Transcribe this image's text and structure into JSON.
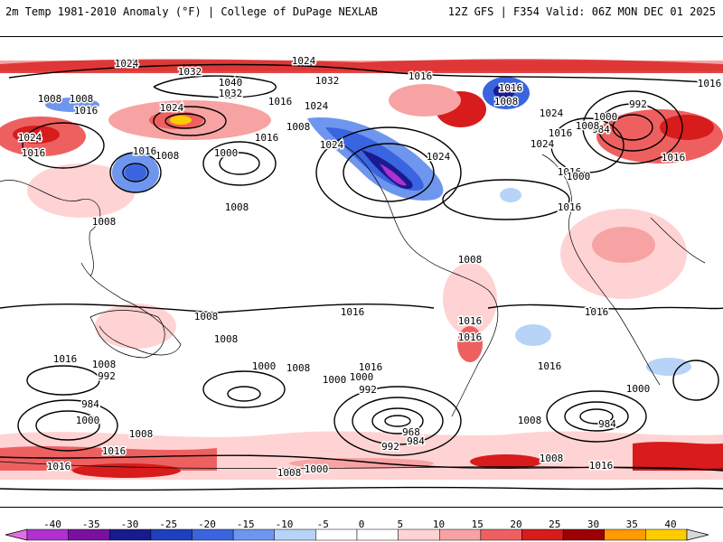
{
  "header": {
    "left": "2m Temp 1981-2010 Anomaly (°F) | College of DuPage NEXLAB",
    "right": "12Z GFS | F354 Valid: 06Z MON DEC 01 2025"
  },
  "colorbar": {
    "ticks": [
      "-40",
      "-35",
      "-30",
      "-25",
      "-20",
      "-15",
      "-10",
      "-5",
      "0",
      "5",
      "10",
      "15",
      "20",
      "25",
      "30",
      "35",
      "40"
    ],
    "colors": [
      "#e070e0",
      "#b030d0",
      "#7a10a0",
      "#1a1a90",
      "#1f3fc0",
      "#3a64e0",
      "#6f96ee",
      "#b7d3f7",
      "#ffffff",
      "#ffffff",
      "#ffd3d3",
      "#f7a3a3",
      "#ee6060",
      "#d81b1b",
      "#9c0000",
      "#ff9a00",
      "#ffcc00",
      "#d7d7d7"
    ]
  },
  "contour_labels": [
    {
      "text": "1024"
    },
    {
      "text": "1024"
    },
    {
      "text": "1032"
    },
    {
      "text": "1040"
    },
    {
      "text": "1032"
    },
    {
      "text": "1016"
    },
    {
      "text": "1008"
    },
    {
      "text": "1016"
    },
    {
      "text": "1024"
    },
    {
      "text": "1024"
    },
    {
      "text": "1008"
    },
    {
      "text": "1016"
    },
    {
      "text": "1000"
    },
    {
      "text": "1008"
    },
    {
      "text": "1016"
    },
    {
      "text": "1008"
    },
    {
      "text": "1016"
    },
    {
      "text": "1024"
    },
    {
      "text": "1024"
    },
    {
      "text": "1024"
    },
    {
      "text": "1032"
    },
    {
      "text": "1016"
    },
    {
      "text": "1016"
    },
    {
      "text": "1016"
    },
    {
      "text": "1024"
    },
    {
      "text": "1008"
    },
    {
      "text": "1016"
    },
    {
      "text": "1000"
    },
    {
      "text": "1024"
    },
    {
      "text": "1024"
    },
    {
      "text": "992"
    },
    {
      "text": "984"
    },
    {
      "text": "1000"
    },
    {
      "text": "1008"
    },
    {
      "text": "1016"
    },
    {
      "text": "1016"
    },
    {
      "text": "1008"
    },
    {
      "text": "1008"
    },
    {
      "text": "1008"
    },
    {
      "text": "1016"
    },
    {
      "text": "1008"
    },
    {
      "text": "1016"
    },
    {
      "text": "1016"
    },
    {
      "text": "1008"
    },
    {
      "text": "1008"
    },
    {
      "text": "1000"
    },
    {
      "text": "1016"
    },
    {
      "text": "1000"
    },
    {
      "text": "992"
    },
    {
      "text": "984"
    },
    {
      "text": "1000"
    },
    {
      "text": "1008"
    },
    {
      "text": "1016"
    },
    {
      "text": "1016"
    },
    {
      "text": "1008"
    },
    {
      "text": "1000"
    },
    {
      "text": "992"
    },
    {
      "text": "968"
    },
    {
      "text": "984"
    },
    {
      "text": "992"
    },
    {
      "text": "1008"
    },
    {
      "text": "1016"
    },
    {
      "text": "1000"
    },
    {
      "text": "984"
    },
    {
      "text": "1016"
    },
    {
      "text": "1008"
    },
    {
      "text": "1016"
    },
    {
      "text": "1000"
    },
    {
      "text": "1016"
    },
    {
      "text": "1008"
    },
    {
      "text": "1016"
    }
  ]
}
